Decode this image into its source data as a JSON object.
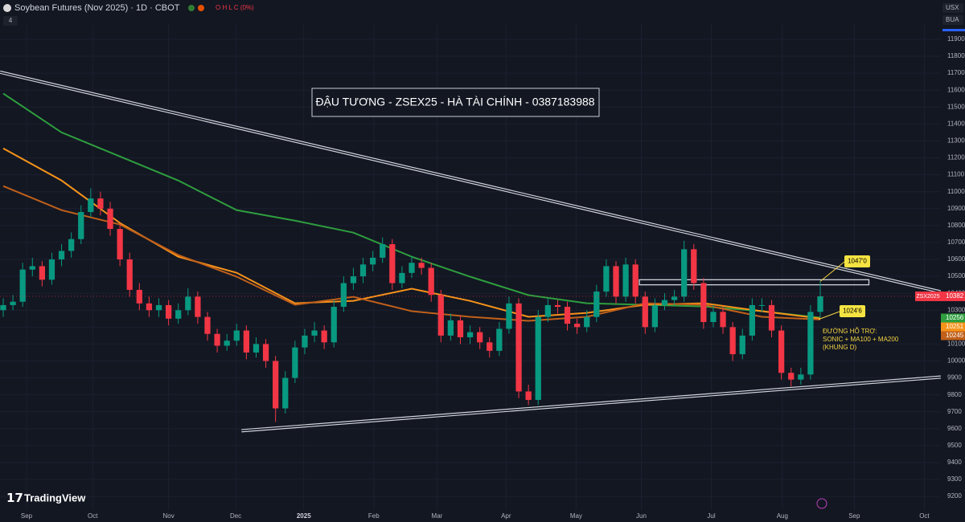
{
  "header": {
    "symbol": "Soybean Futures (Nov 2025) · 1D · CBOT",
    "ohlc": "O H L C (0%)",
    "indicators": "4",
    "currency": "USX",
    "menu": "BUA"
  },
  "logo": "TradingView",
  "chart_data": {
    "type": "candlestick",
    "title": "ĐẬU TƯƠNG - ZSEX25 - HÀ TÀI CHÍNH - 0387183988",
    "symbol_label": "ZSX2025",
    "up_color": "#089981",
    "down_color": "#f23645",
    "xlim": [
      -0.33,
      96.4
    ],
    "ylim": [
      9120,
      11990
    ],
    "yticks": [
      9200,
      9300,
      9400,
      9500,
      9600,
      9700,
      9800,
      9900,
      10000,
      10100,
      10200,
      10300,
      10400,
      10500,
      10600,
      10700,
      10800,
      10900,
      11000,
      11100,
      11200,
      11300,
      11400,
      11500,
      11600,
      11700,
      11800,
      11900
    ],
    "xticks": [
      {
        "value": 2.4,
        "label": "Sep"
      },
      {
        "value": 9.2,
        "label": "Oct"
      },
      {
        "value": 17.0,
        "label": "Nov"
      },
      {
        "value": 23.9,
        "label": "Dec"
      },
      {
        "value": 30.9,
        "label": "2025"
      },
      {
        "value": 38.1,
        "label": "Feb"
      },
      {
        "value": 44.6,
        "label": "Mar"
      },
      {
        "value": 51.7,
        "label": "Apr"
      },
      {
        "value": 58.9,
        "label": "May"
      },
      {
        "value": 65.6,
        "label": "Jun"
      },
      {
        "value": 72.8,
        "label": "Jul"
      },
      {
        "value": 80.1,
        "label": "Aug"
      },
      {
        "value": 87.5,
        "label": "Sep"
      },
      {
        "value": 94.7,
        "label": "Oct"
      }
    ],
    "grid": true,
    "ohlc": [
      [
        10300,
        10370,
        10260,
        10330
      ],
      [
        10330,
        10390,
        10300,
        10350
      ],
      [
        10350,
        10580,
        10320,
        10540
      ],
      [
        10540,
        10610,
        10500,
        10560
      ],
      [
        10560,
        10590,
        10440,
        10480
      ],
      [
        10480,
        10640,
        10450,
        10600
      ],
      [
        10600,
        10690,
        10560,
        10650
      ],
      [
        10650,
        10760,
        10610,
        10720
      ],
      [
        10720,
        10920,
        10690,
        10880
      ],
      [
        10880,
        11020,
        10850,
        10960
      ],
      [
        10960,
        11000,
        10860,
        10900
      ],
      [
        10900,
        10940,
        10740,
        10780
      ],
      [
        10780,
        10810,
        10560,
        10600
      ],
      [
        10600,
        10640,
        10380,
        10420
      ],
      [
        10420,
        10460,
        10300,
        10340
      ],
      [
        10340,
        10380,
        10260,
        10300
      ],
      [
        10300,
        10370,
        10260,
        10330
      ],
      [
        10330,
        10360,
        10210,
        10250
      ],
      [
        10250,
        10340,
        10220,
        10300
      ],
      [
        10300,
        10430,
        10270,
        10380
      ],
      [
        10380,
        10410,
        10220,
        10260
      ],
      [
        10260,
        10290,
        10120,
        10160
      ],
      [
        10160,
        10190,
        10050,
        10090
      ],
      [
        10090,
        10160,
        10060,
        10120
      ],
      [
        10120,
        10220,
        10090,
        10180
      ],
      [
        10180,
        10210,
        10010,
        10050
      ],
      [
        10050,
        10140,
        10020,
        10100
      ],
      [
        10100,
        10130,
        9960,
        10000
      ],
      [
        10000,
        10030,
        9640,
        9720
      ],
      [
        9720,
        9940,
        9690,
        9900
      ],
      [
        9900,
        10120,
        9870,
        10080
      ],
      [
        10080,
        10190,
        10040,
        10150
      ],
      [
        10150,
        10230,
        10110,
        10180
      ],
      [
        10180,
        10210,
        10070,
        10110
      ],
      [
        10110,
        10360,
        10080,
        10320
      ],
      [
        10320,
        10500,
        10290,
        10460
      ],
      [
        10460,
        10550,
        10420,
        10500
      ],
      [
        10500,
        10610,
        10460,
        10570
      ],
      [
        10570,
        10650,
        10530,
        10610
      ],
      [
        10610,
        10730,
        10580,
        10690
      ],
      [
        10690,
        10720,
        10420,
        10460
      ],
      [
        10460,
        10560,
        10430,
        10520
      ],
      [
        10520,
        10620,
        10490,
        10580
      ],
      [
        10580,
        10610,
        10510,
        10550
      ],
      [
        10550,
        10580,
        10350,
        10390
      ],
      [
        10390,
        10420,
        10110,
        10150
      ],
      [
        10150,
        10280,
        10120,
        10240
      ],
      [
        10240,
        10270,
        10100,
        10140
      ],
      [
        10140,
        10210,
        10100,
        10170
      ],
      [
        10170,
        10200,
        10070,
        10110
      ],
      [
        10110,
        10140,
        10020,
        10060
      ],
      [
        10060,
        10230,
        10030,
        10190
      ],
      [
        10190,
        10380,
        10160,
        10340
      ],
      [
        10340,
        10370,
        9780,
        9820
      ],
      [
        9820,
        9860,
        9740,
        9770
      ],
      [
        9770,
        10300,
        9740,
        10260
      ],
      [
        10260,
        10370,
        10230,
        10330
      ],
      [
        10330,
        10360,
        10280,
        10320
      ],
      [
        10320,
        10350,
        10180,
        10220
      ],
      [
        10220,
        10250,
        10160,
        10200
      ],
      [
        10200,
        10300,
        10170,
        10260
      ],
      [
        10260,
        10450,
        10230,
        10410
      ],
      [
        10410,
        10600,
        10380,
        10560
      ],
      [
        10560,
        10590,
        10340,
        10380
      ],
      [
        10380,
        10610,
        10350,
        10570
      ],
      [
        10570,
        10600,
        10340,
        10380
      ],
      [
        10380,
        10410,
        10160,
        10200
      ],
      [
        10200,
        10370,
        10170,
        10330
      ],
      [
        10330,
        10400,
        10300,
        10360
      ],
      [
        10360,
        10420,
        10330,
        10380
      ],
      [
        10380,
        10710,
        10350,
        10660
      ],
      [
        10660,
        10690,
        10420,
        10460
      ],
      [
        10460,
        10490,
        10190,
        10230
      ],
      [
        10230,
        10330,
        10200,
        10290
      ],
      [
        10290,
        10320,
        10160,
        10200
      ],
      [
        10200,
        10230,
        10000,
        10040
      ],
      [
        10040,
        10190,
        10010,
        10150
      ],
      [
        10150,
        10370,
        10120,
        10330
      ],
      [
        10330,
        10370,
        10290,
        10330
      ],
      [
        10330,
        10360,
        10140,
        10180
      ],
      [
        10180,
        10210,
        9890,
        9930
      ],
      [
        9930,
        9960,
        9850,
        9890
      ],
      [
        9890,
        9960,
        9860,
        9920
      ],
      [
        9920,
        10330,
        9890,
        10290
      ],
      [
        10290,
        10470,
        10260,
        10382
      ]
    ],
    "series": [
      {
        "color": "#2e9e3e",
        "x": [
          0,
          6,
          12,
          18,
          24,
          30,
          36,
          42,
          48,
          54,
          60,
          66,
          72,
          78,
          84
        ],
        "values": [
          11580,
          11350,
          11208,
          11066,
          10891,
          10829,
          10758,
          10616,
          10498,
          10389,
          10341,
          10332,
          10322,
          10294,
          10256
        ]
      },
      {
        "color": "#f7931a",
        "x": [
          0,
          6,
          12,
          18,
          24,
          30,
          36,
          42,
          48,
          54,
          60,
          66,
          72,
          78,
          84
        ],
        "values": [
          11256,
          11066,
          10815,
          10616,
          10521,
          10341,
          10355,
          10427,
          10355,
          10261,
          10284,
          10332,
          10341,
          10294,
          10251
        ]
      },
      {
        "color": "#c0601a",
        "x": [
          0,
          6,
          12,
          18,
          24,
          30,
          36,
          42,
          48,
          54,
          60,
          66,
          72,
          78,
          84
        ],
        "values": [
          11033,
          10891,
          10806,
          10626,
          10498,
          10332,
          10379,
          10294,
          10261,
          10237,
          10261,
          10341,
          10332,
          10261,
          10245
        ]
      }
    ],
    "trendlines": [
      {
        "x": [
          -0.33,
          96.4
        ],
        "values": [
          11706,
          10408
        ]
      },
      {
        "x": [
          24.5,
          96.4
        ],
        "values": [
          9588,
          9905
        ]
      }
    ],
    "zone": {
      "x": [
        65.4,
        89
      ],
      "values": [
        10450,
        10480
      ]
    },
    "support_callout": {
      "value": 10246,
      "label": "1024'6"
    },
    "high_callout_label": "1047'0",
    "annotation": [
      "ĐƯỜNG HỖ TRỢ:",
      "SONIC + MA100 + MA200",
      "(KHUNG D)"
    ]
  }
}
